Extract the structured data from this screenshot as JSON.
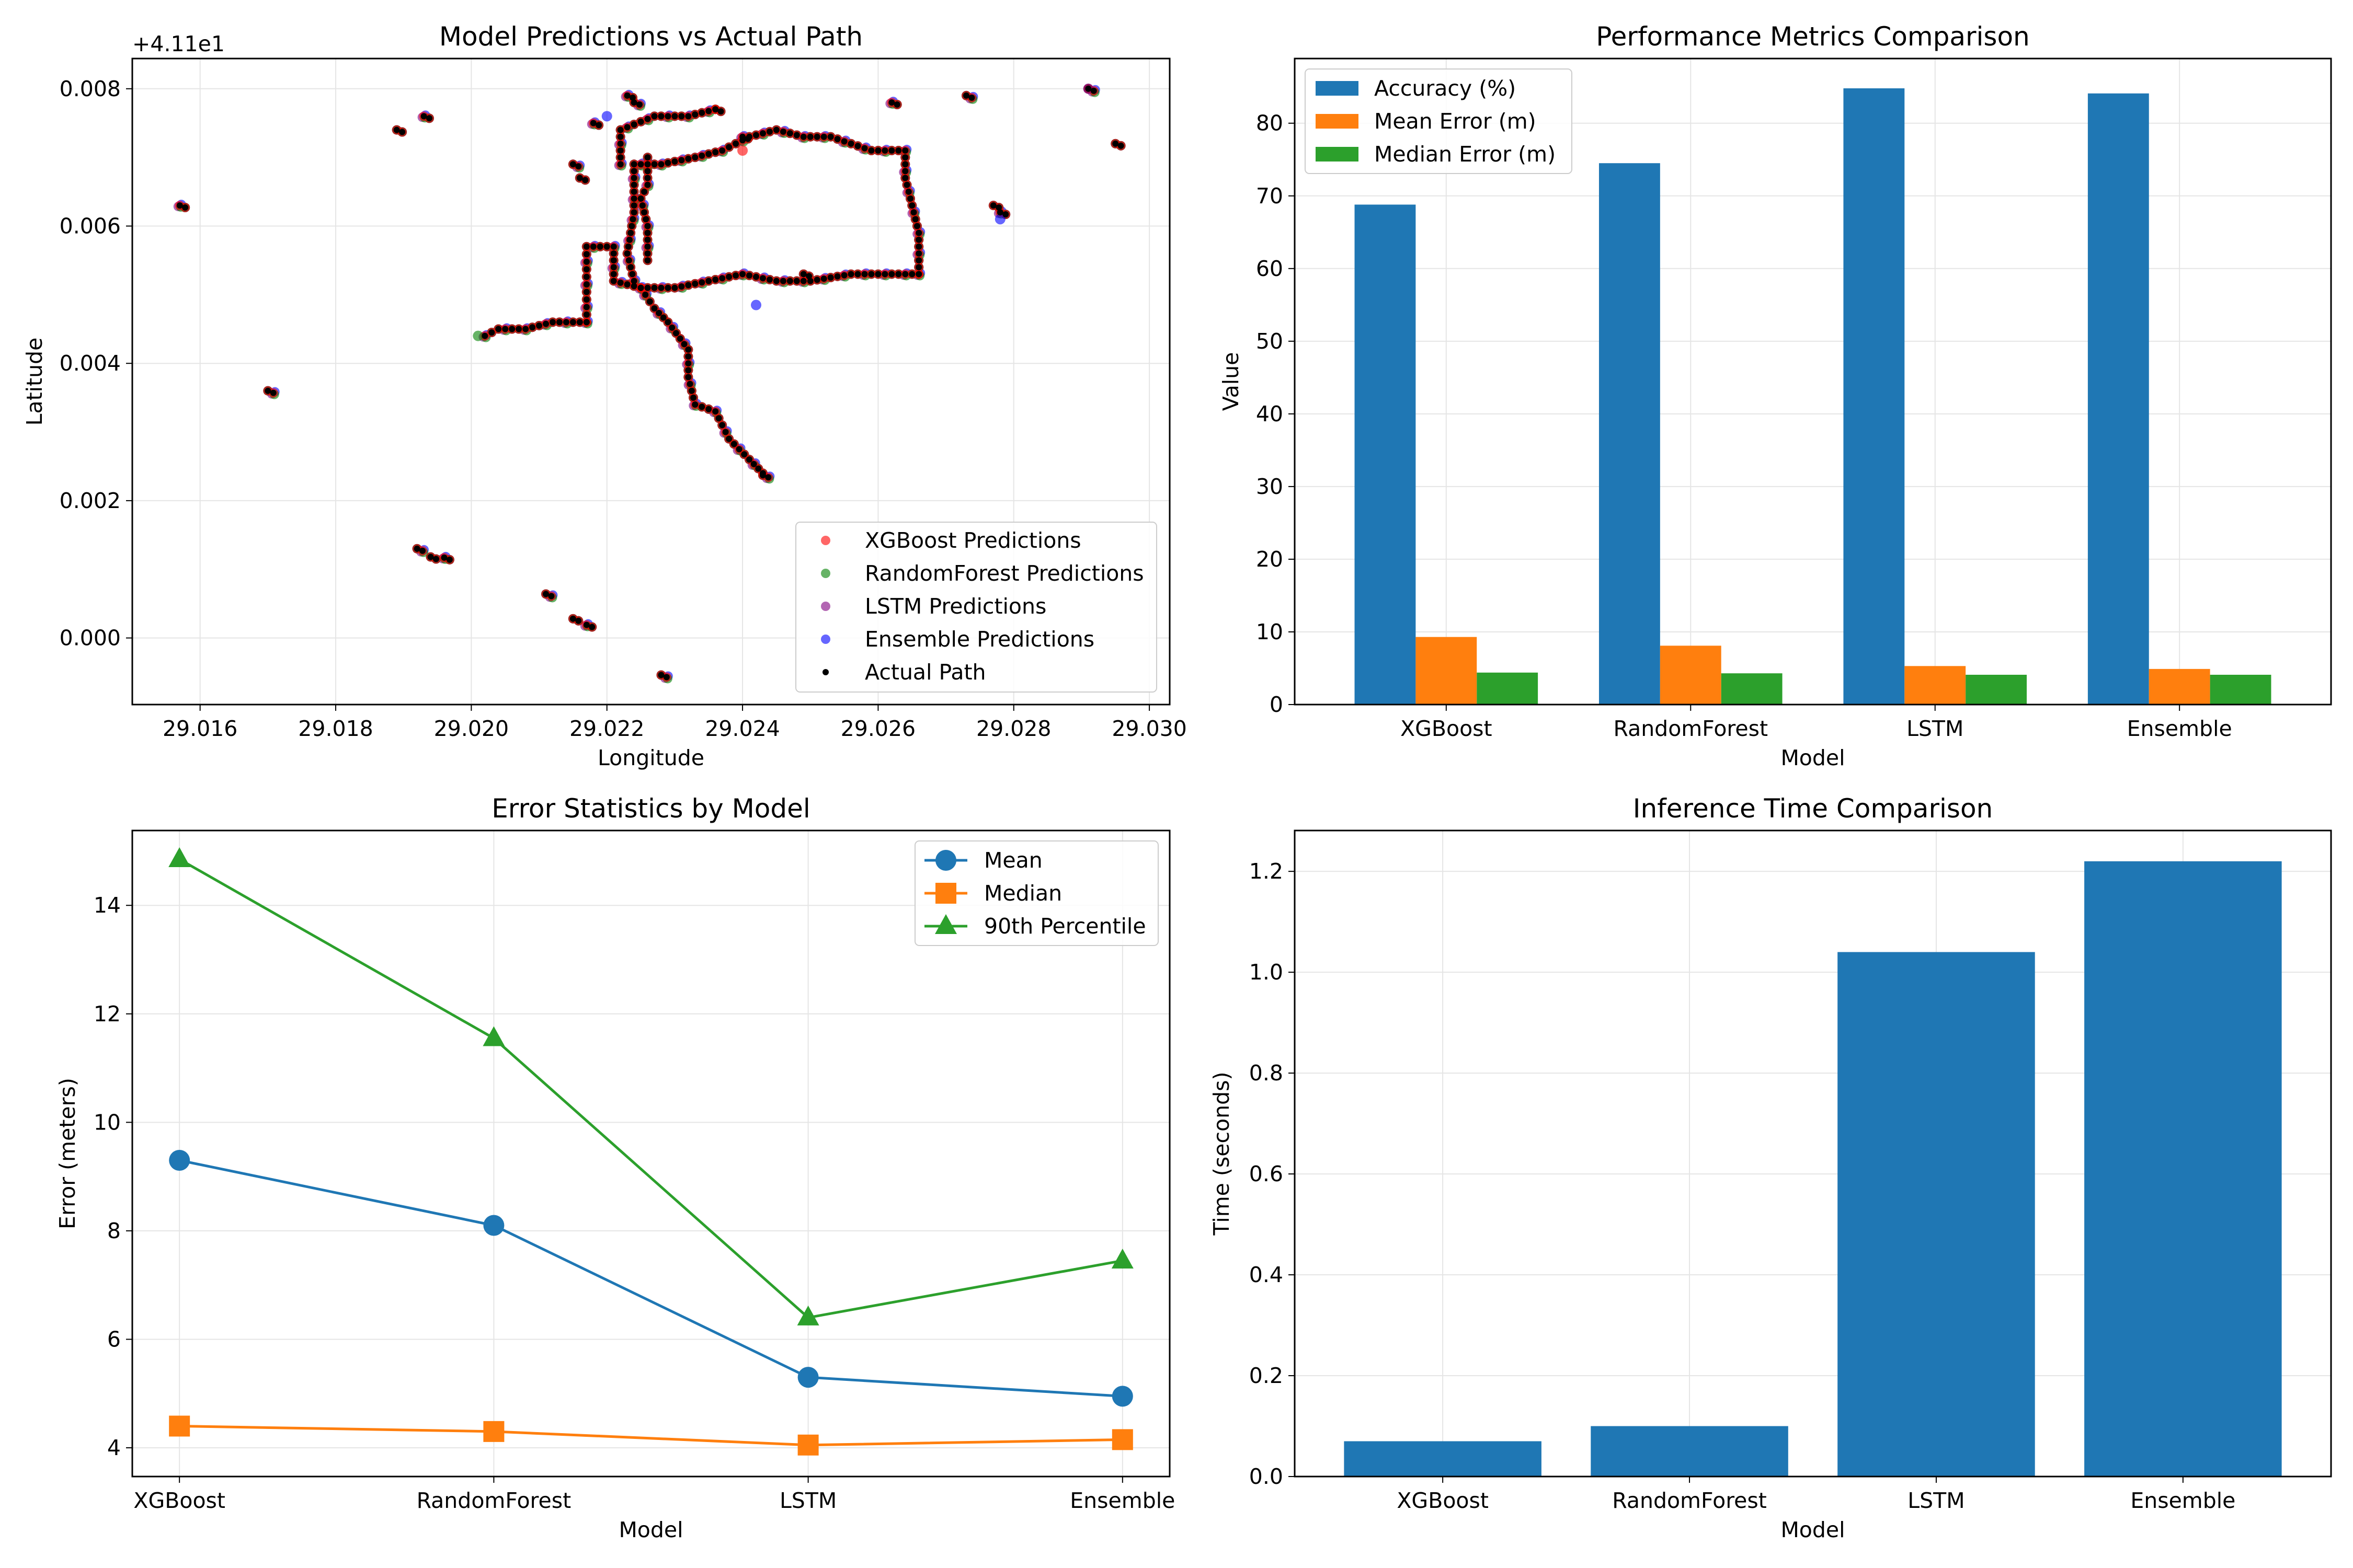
{
  "chart_data": [
    {
      "type": "scatter",
      "title": "Model Predictions vs Actual Path",
      "xlabel": "Longitude",
      "ylabel": "Latitude",
      "offset_label": "+4.11e1",
      "xlim": [
        29.015,
        29.0303
      ],
      "ylim": [
        -0.00097,
        0.00844
      ],
      "xticks": [
        29.016,
        29.018,
        29.02,
        29.022,
        29.024,
        29.026,
        29.028,
        29.03
      ],
      "xtick_labels": [
        "29.016",
        "29.018",
        "29.020",
        "29.022",
        "29.024",
        "29.026",
        "29.028",
        "29.030"
      ],
      "yticks": [
        0.0,
        0.002,
        0.004,
        0.006,
        0.008
      ],
      "ytick_labels": [
        "0.000",
        "0.002",
        "0.004",
        "0.006",
        "0.008"
      ],
      "grid": true,
      "legend_position": "lower-right",
      "series": [
        {
          "name": "XGBoost Predictions",
          "color": "#ff0000",
          "alpha": 0.6
        },
        {
          "name": "RandomForest Predictions",
          "color": "#008000",
          "alpha": 0.6
        },
        {
          "name": "LSTM Predictions",
          "color": "#800080",
          "alpha": 0.6
        },
        {
          "name": "Ensemble Predictions",
          "color": "#0000ff",
          "alpha": 0.6
        },
        {
          "name": "Actual Path",
          "color": "#000000",
          "alpha": 1.0
        }
      ],
      "path_segments": [
        [
          [
            29.0202,
            0.0044
          ],
          [
            29.0204,
            0.0045
          ],
          [
            29.0208,
            0.0045
          ],
          [
            29.0212,
            0.0046
          ],
          [
            29.0217,
            0.0046
          ]
        ],
        [
          [
            29.0217,
            0.0046
          ],
          [
            29.0217,
            0.0057
          ],
          [
            29.0221,
            0.0057
          ],
          [
            29.0221,
            0.0052
          ],
          [
            29.0225,
            0.0051
          ],
          [
            29.023,
            0.0051
          ],
          [
            29.0235,
            0.0052
          ],
          [
            29.024,
            0.0053
          ],
          [
            29.0245,
            0.0052
          ],
          [
            29.025,
            0.0052
          ],
          [
            29.0256,
            0.0053
          ],
          [
            29.0261,
            0.0053
          ],
          [
            29.0266,
            0.0053
          ]
        ],
        [
          [
            29.0266,
            0.0053
          ],
          [
            29.0266,
            0.0059
          ],
          [
            29.0264,
            0.0067
          ],
          [
            29.0264,
            0.0071
          ],
          [
            29.0259,
            0.0071
          ],
          [
            29.0253,
            0.0073
          ],
          [
            29.0249,
            0.0073
          ],
          [
            29.0245,
            0.0074
          ],
          [
            29.0241,
            0.0073
          ],
          [
            29.0237,
            0.0071
          ],
          [
            29.0233,
            0.007
          ],
          [
            29.0228,
            0.0069
          ],
          [
            29.0224,
            0.0069
          ],
          [
            29.0224,
            0.0062
          ],
          [
            29.0223,
            0.0056
          ],
          [
            29.0224,
            0.0052
          ],
          [
            29.0225,
            0.0051
          ]
        ],
        [
          [
            29.0225,
            0.0051
          ],
          [
            29.0227,
            0.0048
          ],
          [
            29.0229,
            0.0046
          ],
          [
            29.0232,
            0.0042
          ],
          [
            29.0232,
            0.0038
          ],
          [
            29.0233,
            0.0034
          ],
          [
            29.0236,
            0.0033
          ],
          [
            29.0238,
            0.0029
          ],
          [
            29.0241,
            0.0026
          ],
          [
            29.0243,
            0.0024
          ]
        ],
        [
          [
            29.0222,
            0.0069
          ],
          [
            29.0222,
            0.0074
          ],
          [
            29.0227,
            0.0076
          ],
          [
            29.0232,
            0.0076
          ],
          [
            29.0236,
            0.0077
          ]
        ],
        [
          [
            29.0226,
            0.007
          ],
          [
            29.0226,
            0.0066
          ],
          [
            29.0225,
            0.0064
          ],
          [
            29.0226,
            0.006
          ],
          [
            29.0226,
            0.0055
          ]
        ]
      ],
      "isolated_points": [
        [
          29.0157,
          0.0063
        ],
        [
          29.017,
          0.0036
        ],
        [
          29.0189,
          0.0074
        ],
        [
          29.0193,
          0.0076
        ],
        [
          29.0192,
          0.0013
        ],
        [
          29.0194,
          0.00118
        ],
        [
          29.0196,
          0.00117
        ],
        [
          29.0211,
          0.00064
        ],
        [
          29.0215,
          0.00028
        ],
        [
          29.0217,
          0.00019
        ],
        [
          29.0228,
          -0.00054
        ],
        [
          29.0236,
          0.0077
        ],
        [
          29.024,
          0.0073
        ],
        [
          29.0243,
          0.00237
        ],
        [
          29.0249,
          0.0053
        ],
        [
          29.0262,
          0.0078
        ],
        [
          29.0273,
          0.0079
        ],
        [
          29.0277,
          0.0063
        ],
        [
          29.0278,
          0.0062
        ],
        [
          29.0291,
          0.008
        ],
        [
          29.0295,
          0.0072
        ],
        [
          29.0218,
          0.0075
        ],
        [
          29.0215,
          0.0069
        ],
        [
          29.0216,
          0.0067
        ],
        [
          29.0223,
          0.0079
        ],
        [
          29.0224,
          0.0078
        ]
      ],
      "prediction_outliers": [
        {
          "series": "Ensemble Predictions",
          "point": [
            29.0242,
            0.00485
          ]
        },
        {
          "series": "Ensemble Predictions",
          "point": [
            29.0278,
            0.0061
          ]
        },
        {
          "series": "Ensemble Predictions",
          "point": [
            29.022,
            0.0076
          ]
        },
        {
          "series": "XGBoost Predictions",
          "point": [
            29.024,
            0.0071
          ]
        },
        {
          "series": "RandomForest Predictions",
          "point": [
            29.0201,
            0.0044
          ]
        },
        {
          "series": "LSTM Predictions",
          "point": [
            29.0291,
            0.008
          ]
        }
      ]
    },
    {
      "type": "bar",
      "title": "Performance Metrics Comparison",
      "xlabel": "Model",
      "ylabel": "Value",
      "categories": [
        "XGBoost",
        "RandomForest",
        "LSTM",
        "Ensemble"
      ],
      "ylim": [
        0,
        88.9
      ],
      "yticks": [
        0,
        10,
        20,
        30,
        40,
        50,
        60,
        70,
        80
      ],
      "grid": true,
      "legend_position": "top-left",
      "series": [
        {
          "name": "Accuracy (%)",
          "color": "#1f77b4",
          "values": [
            68.8,
            74.5,
            84.8,
            84.1
          ]
        },
        {
          "name": "Mean Error (m)",
          "color": "#ff7f0e",
          "values": [
            9.3,
            8.1,
            5.3,
            4.9
          ]
        },
        {
          "name": "Median Error (m)",
          "color": "#2ca02c",
          "values": [
            4.4,
            4.3,
            4.1,
            4.1
          ]
        }
      ]
    },
    {
      "type": "line",
      "title": "Error Statistics by Model",
      "xlabel": "Model",
      "ylabel": "Error (meters)",
      "categories": [
        "XGBoost",
        "RandomForest",
        "LSTM",
        "Ensemble"
      ],
      "ylim": [
        3.47,
        15.38
      ],
      "yticks": [
        4,
        6,
        8,
        10,
        12,
        14
      ],
      "grid": true,
      "legend_position": "top-right",
      "series": [
        {
          "name": "Mean",
          "color": "#1f77b4",
          "marker": "circle",
          "values": [
            9.3,
            8.1,
            5.3,
            4.95
          ]
        },
        {
          "name": "Median",
          "color": "#ff7f0e",
          "marker": "square",
          "values": [
            4.4,
            4.3,
            4.05,
            4.15
          ]
        },
        {
          "name": "90th Percentile",
          "color": "#2ca02c",
          "marker": "triangle",
          "values": [
            14.85,
            11.55,
            6.4,
            7.45
          ]
        }
      ]
    },
    {
      "type": "bar",
      "title": "Inference Time Comparison",
      "xlabel": "Model",
      "ylabel": "Time (seconds)",
      "categories": [
        "XGBoost",
        "RandomForest",
        "LSTM",
        "Ensemble"
      ],
      "ylim": [
        0,
        1.281
      ],
      "yticks": [
        0.0,
        0.2,
        0.4,
        0.6,
        0.8,
        1.0,
        1.2
      ],
      "grid": true,
      "series": [
        {
          "name": "",
          "color": "#1f77b4",
          "values": [
            0.07,
            0.1,
            1.04,
            1.22
          ]
        }
      ]
    }
  ]
}
